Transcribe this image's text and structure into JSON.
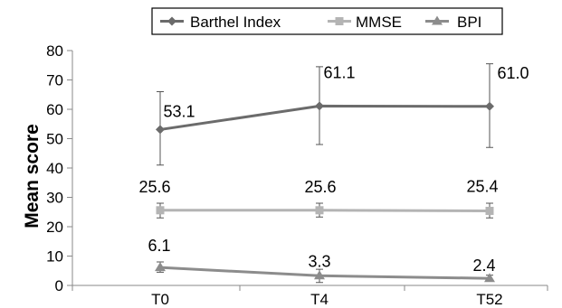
{
  "chart_data": {
    "type": "line",
    "categories": [
      "T0",
      "T4",
      "T52"
    ],
    "ylabel": "Mean score",
    "ylim": [
      0,
      80
    ],
    "yticks": [
      0,
      10,
      20,
      30,
      40,
      50,
      60,
      70,
      80
    ],
    "grid": false,
    "legend_position": "top",
    "series": [
      {
        "name": "Barthel Index",
        "values": [
          53.1,
          61.1,
          61.0
        ],
        "labels": [
          "53.1",
          "61.1",
          "61.0"
        ],
        "error_low": [
          41.0,
          48.0,
          47.0
        ],
        "error_high": [
          66.0,
          74.5,
          75.5
        ],
        "color": "#6b6b6b",
        "marker": "diamond"
      },
      {
        "name": "MMSE",
        "values": [
          25.6,
          25.6,
          25.4
        ],
        "labels": [
          "25.6",
          "25.6",
          "25.4"
        ],
        "error_low": [
          23.0,
          23.3,
          23.0
        ],
        "error_high": [
          28.0,
          28.0,
          28.0
        ],
        "color": "#b4b4b4",
        "marker": "square"
      },
      {
        "name": "BPI",
        "values": [
          6.1,
          3.3,
          2.4
        ],
        "labels": [
          "6.1",
          "3.3",
          "2.4"
        ],
        "error_low": [
          4.5,
          1.0,
          1.5
        ],
        "error_high": [
          8.0,
          5.5,
          3.5
        ],
        "color": "#8c8c8c",
        "marker": "triangle"
      }
    ]
  }
}
